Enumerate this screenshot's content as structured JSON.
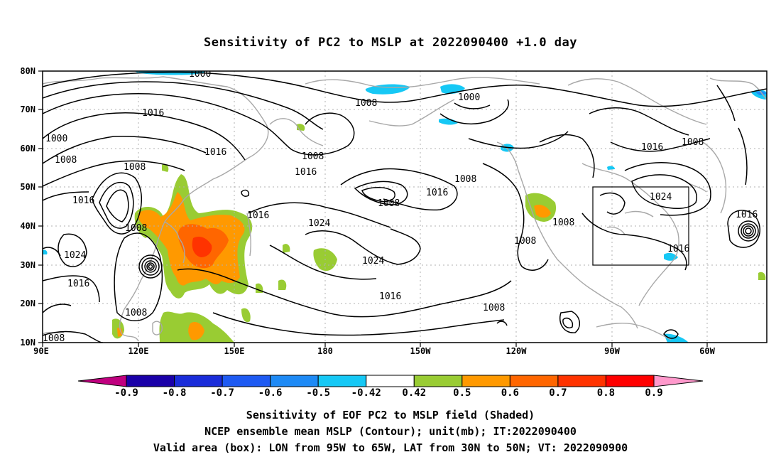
{
  "title": "Sensitivity of PC2 to MSLP at 2022090400 +1.0 day",
  "map": {
    "lat_labels": [
      "80N",
      "70N",
      "60N",
      "50N",
      "40N",
      "30N",
      "20N",
      "10N"
    ],
    "lon_labels": [
      "90E",
      "120E",
      "150E",
      "180",
      "150W",
      "120W",
      "90W",
      "60W"
    ],
    "contour_labels": {
      "c1000": "1000",
      "c1008": "1008",
      "c1016": "1016",
      "c1024": "1024"
    },
    "valid_box": {
      "lon": [
        "95W",
        "65W"
      ],
      "lat": [
        "30N",
        "50N"
      ]
    }
  },
  "colorbar": {
    "labels": [
      "-0.9",
      "-0.8",
      "-0.7",
      "-0.6",
      "-0.5",
      "-0.42",
      "0.42",
      "0.5",
      "0.6",
      "0.7",
      "0.8",
      "0.9"
    ],
    "colors": [
      "#c0007f",
      "#1a00a8",
      "#1a2cd9",
      "#1e5af2",
      "#1e8af5",
      "#16c8f5",
      "#ffffff",
      "#99cc33",
      "#ff9900",
      "#ff6600",
      "#ff3300",
      "#ff0000",
      "#ff99cc"
    ]
  },
  "caption": {
    "line1": "Sensitivity of EOF PC2 to MSLP field (Shaded)",
    "line2": "NCEP ensemble mean MSLP (Contour); unit(mb); IT:2022090400",
    "line3": "Valid area (box): LON from 95W to 65W, LAT from 30N to 50N; VT: 2022090900"
  }
}
